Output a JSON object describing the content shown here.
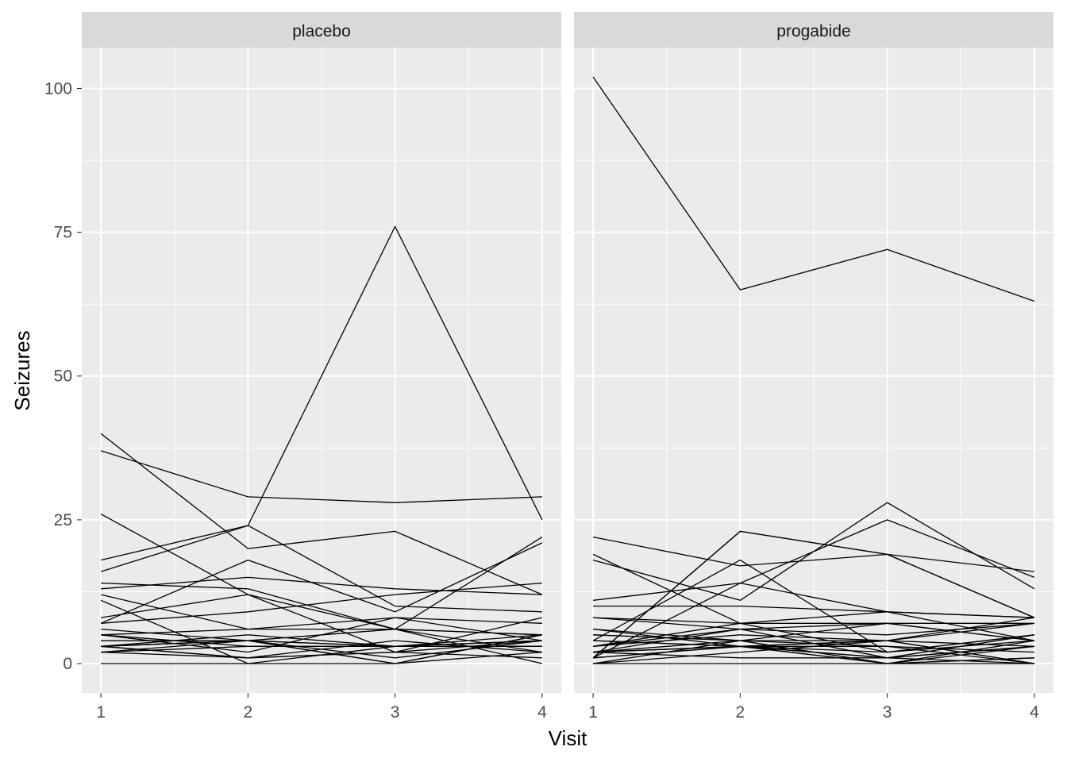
{
  "chart_data": {
    "type": "line",
    "facet_by": "treatment",
    "xlabel": "Visit",
    "ylabel": "Seizures",
    "xlim": [
      0.87,
      4.13
    ],
    "ylim": [
      -5.1,
      107.1
    ],
    "x_ticks": [
      1,
      2,
      3,
      4
    ],
    "y_ticks": [
      0,
      25,
      50,
      75,
      100
    ],
    "grid": true,
    "line_color": "#000000",
    "panel_background": "#ebebeb",
    "strip_background": "#d9d9d9",
    "panels": [
      {
        "label": "placebo",
        "series": [
          {
            "x": [
              1,
              2,
              3,
              4
            ],
            "y": [
              5,
              3,
              3,
              3
            ]
          },
          {
            "x": [
              1,
              2,
              3,
              4
            ],
            "y": [
              3,
              5,
              3,
              3
            ]
          },
          {
            "x": [
              1,
              2,
              3,
              4
            ],
            "y": [
              2,
              4,
              0,
              5
            ]
          },
          {
            "x": [
              1,
              2,
              3,
              4
            ],
            "y": [
              4,
              4,
              1,
              4
            ]
          },
          {
            "x": [
              1,
              2,
              3,
              4
            ],
            "y": [
              7,
              18,
              9,
              21
            ]
          },
          {
            "x": [
              1,
              2,
              3,
              4
            ],
            "y": [
              5,
              2,
              8,
              7
            ]
          },
          {
            "x": [
              1,
              2,
              3,
              4
            ],
            "y": [
              6,
              4,
              0,
              2
            ]
          },
          {
            "x": [
              1,
              2,
              3,
              4
            ],
            "y": [
              40,
              20,
              23,
              12
            ]
          },
          {
            "x": [
              1,
              2,
              3,
              4
            ],
            "y": [
              5,
              6,
              6,
              5
            ]
          },
          {
            "x": [
              1,
              2,
              3,
              4
            ],
            "y": [
              14,
              13,
              6,
              0
            ]
          },
          {
            "x": [
              1,
              2,
              3,
              4
            ],
            "y": [
              26,
              12,
              6,
              22
            ]
          },
          {
            "x": [
              1,
              2,
              3,
              4
            ],
            "y": [
              12,
              6,
              8,
              4
            ]
          },
          {
            "x": [
              1,
              2,
              3,
              4
            ],
            "y": [
              4,
              4,
              6,
              2
            ]
          },
          {
            "x": [
              1,
              2,
              3,
              4
            ],
            "y": [
              7,
              9,
              12,
              14
            ]
          },
          {
            "x": [
              1,
              2,
              3,
              4
            ],
            "y": [
              16,
              24,
              10,
              9
            ]
          },
          {
            "x": [
              1,
              2,
              3,
              4
            ],
            "y": [
              11,
              0,
              0,
              5
            ]
          },
          {
            "x": [
              1,
              2,
              3,
              4
            ],
            "y": [
              0,
              0,
              3,
              3
            ]
          },
          {
            "x": [
              1,
              2,
              3,
              4
            ],
            "y": [
              37,
              29,
              28,
              29
            ]
          },
          {
            "x": [
              1,
              2,
              3,
              4
            ],
            "y": [
              3,
              4,
              6,
              5
            ]
          },
          {
            "x": [
              1,
              2,
              3,
              4
            ],
            "y": [
              3,
              4,
              3,
              4
            ]
          },
          {
            "x": [
              1,
              2,
              3,
              4
            ],
            "y": [
              3,
              4,
              3,
              4
            ]
          },
          {
            "x": [
              1,
              2,
              3,
              4
            ],
            "y": [
              3,
              1,
              2,
              4
            ]
          },
          {
            "x": [
              1,
              2,
              3,
              4
            ],
            "y": [
              2,
              3,
              3,
              5
            ]
          },
          {
            "x": [
              1,
              2,
              3,
              4
            ],
            "y": [
              8,
              12,
              2,
              8
            ]
          },
          {
            "x": [
              1,
              2,
              3,
              4
            ],
            "y": [
              18,
              24,
              76,
              25
            ]
          },
          {
            "x": [
              1,
              2,
              3,
              4
            ],
            "y": [
              2,
              1,
              2,
              1
            ]
          },
          {
            "x": [
              1,
              2,
              3,
              4
            ],
            "y": [
              3,
              1,
              4,
              2
            ]
          },
          {
            "x": [
              1,
              2,
              3,
              4
            ],
            "y": [
              13,
              15,
              13,
              12
            ]
          }
        ]
      },
      {
        "label": "progabide",
        "series": [
          {
            "x": [
              1,
              2,
              3,
              4
            ],
            "y": [
              11,
              14,
              9,
              8
            ]
          },
          {
            "x": [
              1,
              2,
              3,
              4
            ],
            "y": [
              8,
              7,
              9,
              4
            ]
          },
          {
            "x": [
              1,
              2,
              3,
              4
            ],
            "y": [
              0,
              4,
              3,
              0
            ]
          },
          {
            "x": [
              1,
              2,
              3,
              4
            ],
            "y": [
              3,
              6,
              1,
              3
            ]
          },
          {
            "x": [
              1,
              2,
              3,
              4
            ],
            "y": [
              2,
              6,
              7,
              4
            ]
          },
          {
            "x": [
              1,
              2,
              3,
              4
            ],
            "y": [
              4,
              3,
              1,
              3
            ]
          },
          {
            "x": [
              1,
              2,
              3,
              4
            ],
            "y": [
              22,
              17,
              19,
              16
            ]
          },
          {
            "x": [
              1,
              2,
              3,
              4
            ],
            "y": [
              5,
              4,
              7,
              4
            ]
          },
          {
            "x": [
              1,
              2,
              3,
              4
            ],
            "y": [
              2,
              4,
              0,
              4
            ]
          },
          {
            "x": [
              1,
              2,
              3,
              4
            ],
            "y": [
              3,
              7,
              7,
              7
            ]
          },
          {
            "x": [
              1,
              2,
              3,
              4
            ],
            "y": [
              4,
              18,
              2,
              5
            ]
          },
          {
            "x": [
              1,
              2,
              3,
              4
            ],
            "y": [
              2,
              1,
              1,
              0
            ]
          },
          {
            "x": [
              1,
              2,
              3,
              4
            ],
            "y": [
              0,
              2,
              4,
              0
            ]
          },
          {
            "x": [
              1,
              2,
              3,
              4
            ],
            "y": [
              5,
              4,
              0,
              3
            ]
          },
          {
            "x": [
              1,
              2,
              3,
              4
            ],
            "y": [
              2,
              3,
              3,
              2
            ]
          },
          {
            "x": [
              1,
              2,
              3,
              4
            ],
            "y": [
              1,
              23,
              19,
              8
            ]
          },
          {
            "x": [
              1,
              2,
              3,
              4
            ],
            "y": [
              2,
              3,
              0,
              1
            ]
          },
          {
            "x": [
              1,
              2,
              3,
              4
            ],
            "y": [
              1,
              3,
              4,
              8
            ]
          },
          {
            "x": [
              1,
              2,
              3,
              4
            ],
            "y": [
              102,
              65,
              72,
              63
            ]
          },
          {
            "x": [
              1,
              2,
              3,
              4
            ],
            "y": [
              4,
              3,
              2,
              4
            ]
          },
          {
            "x": [
              1,
              2,
              3,
              4
            ],
            "y": [
              8,
              6,
              5,
              7
            ]
          },
          {
            "x": [
              1,
              2,
              3,
              4
            ],
            "y": [
              1,
              3,
              1,
              5
            ]
          },
          {
            "x": [
              1,
              2,
              3,
              4
            ],
            "y": [
              18,
              11,
              28,
              13
            ]
          },
          {
            "x": [
              1,
              2,
              3,
              4
            ],
            "y": [
              6,
              3,
              4,
              0
            ]
          },
          {
            "x": [
              1,
              2,
              3,
              4
            ],
            "y": [
              3,
              5,
              4,
              3
            ]
          },
          {
            "x": [
              1,
              2,
              3,
              4
            ],
            "y": [
              1,
              23,
              19,
              8
            ]
          },
          {
            "x": [
              1,
              2,
              3,
              4
            ],
            "y": [
              2,
              3,
              0,
              1
            ]
          },
          {
            "x": [
              1,
              2,
              3,
              4
            ],
            "y": [
              0,
              0,
              0,
              0
            ]
          },
          {
            "x": [
              1,
              2,
              3,
              4
            ],
            "y": [
              19,
              7,
              2,
              5
            ]
          },
          {
            "x": [
              1,
              2,
              3,
              4
            ],
            "y": [
              6,
              4,
              4,
              7
            ]
          },
          {
            "x": [
              1,
              2,
              3,
              4
            ],
            "y": [
              10,
              10,
              9,
              8
            ]
          },
          {
            "x": [
              1,
              2,
              3,
              4
            ],
            "y": [
              1,
              14,
              25,
              15
            ]
          }
        ]
      }
    ]
  }
}
